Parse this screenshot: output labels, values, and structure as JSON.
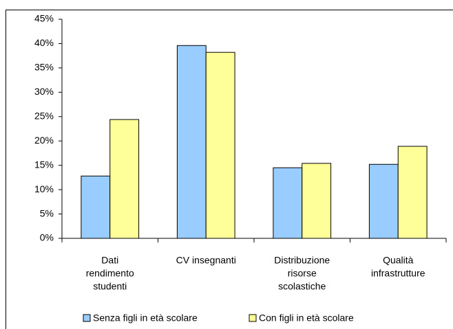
{
  "chart_data": {
    "type": "bar",
    "categories": [
      [
        "Dati",
        "rendimento",
        "studenti"
      ],
      [
        "CV insegnanti"
      ],
      [
        "Distribuzione",
        "risorse",
        "scolastiche"
      ],
      [
        "Qualità",
        "infrastrutture"
      ]
    ],
    "series": [
      {
        "name": "Senza figli in età scolare",
        "color": "#99ccff",
        "values": [
          12.8,
          39.6,
          14.5,
          15.2
        ]
      },
      {
        "name": "Con figli in età scolare",
        "color": "#ffff99",
        "values": [
          24.4,
          38.2,
          15.4,
          18.9
        ]
      }
    ],
    "ylim": [
      0,
      45
    ],
    "yticks": [
      {
        "value": 0,
        "label": "0%"
      },
      {
        "value": 5,
        "label": "5%"
      },
      {
        "value": 10,
        "label": "10%"
      },
      {
        "value": 15,
        "label": "15%"
      },
      {
        "value": 20,
        "label": "20%"
      },
      {
        "value": 25,
        "label": "25%"
      },
      {
        "value": 30,
        "label": "30%"
      },
      {
        "value": 35,
        "label": "35%"
      },
      {
        "value": 40,
        "label": "40%"
      },
      {
        "value": 45,
        "label": "45%"
      }
    ],
    "grid": false,
    "legend": "bottom"
  }
}
